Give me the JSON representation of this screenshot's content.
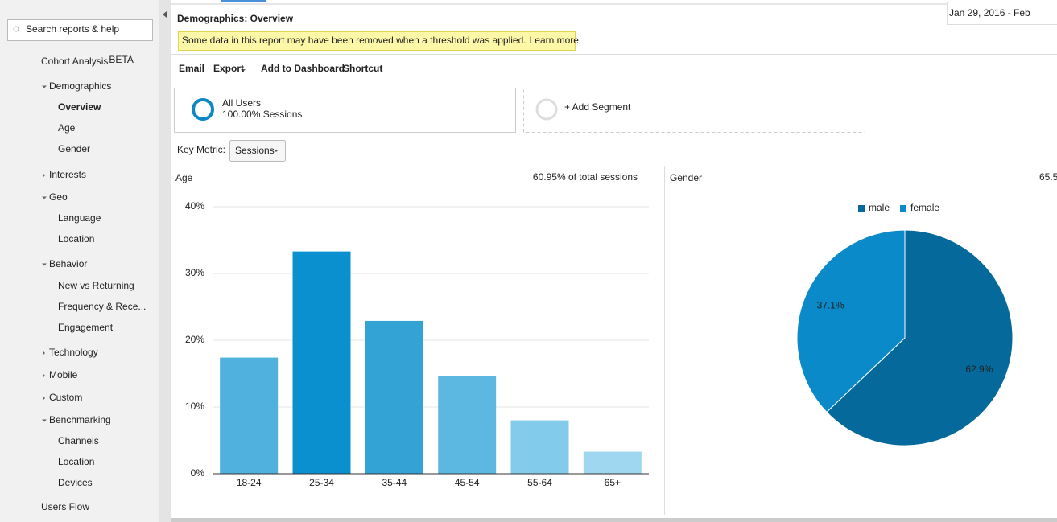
{
  "sidebar": {
    "search_placeholder": "Search reports & help",
    "badge": "BETA",
    "items": [
      "Cohort Analysis",
      "Demographics",
      "Overview",
      "Age",
      "Gender",
      "Interests",
      "Geo",
      "Language",
      "Location",
      "Behavior",
      "New vs Returning",
      "Frequency & Rece...",
      "Engagement",
      "Technology",
      "Mobile",
      "Custom",
      "Benchmarking",
      "Channels",
      "Location",
      "Devices",
      "Users Flow"
    ]
  },
  "header": {
    "title": "Demographics: Overview",
    "notice": "Some data in this report may have been removed when a threshold was applied.",
    "notice_link": "Learn more",
    "date_range": "Jan 29, 2016 - Feb"
  },
  "toolbar": [
    "Email",
    "Export",
    "Add to Dashboard",
    "Shortcut"
  ],
  "segments": {
    "name": "All Users",
    "detail": "100.00% Sessions",
    "add": "+ Add Segment"
  },
  "key_metric": {
    "label": "Key Metric:",
    "value": "Sessions"
  },
  "chart_data": [
    {
      "type": "bar",
      "title": "Age",
      "subtitle": "60.95% of total sessions",
      "categories": [
        "18-24",
        "25-34",
        "35-44",
        "45-54",
        "55-64",
        "65+"
      ],
      "values": [
        17.4,
        33.3,
        22.9,
        14.7,
        8.0,
        3.3
      ],
      "colors": [
        "#50b1de",
        "#0a8fcf",
        "#33a3d6",
        "#5cb8e1",
        "#82cbea",
        "#9fd7f0"
      ],
      "ylim": [
        0,
        40
      ],
      "yticks": [
        {
          "value": 0,
          "label": "0%"
        },
        {
          "value": 10,
          "label": "10%"
        },
        {
          "value": 20,
          "label": "20%"
        },
        {
          "value": 30,
          "label": "30%"
        },
        {
          "value": 40,
          "label": "40%"
        }
      ],
      "grid": true
    },
    {
      "type": "pie",
      "title": "Gender",
      "subtitle": "65.5",
      "categories": [
        "male",
        "female"
      ],
      "values": [
        62.9,
        37.1
      ],
      "value_labels": [
        "62.9%",
        "37.1%"
      ],
      "colors": [
        "#056a9b",
        "#0a8ac8"
      ],
      "legend": "top"
    }
  ]
}
